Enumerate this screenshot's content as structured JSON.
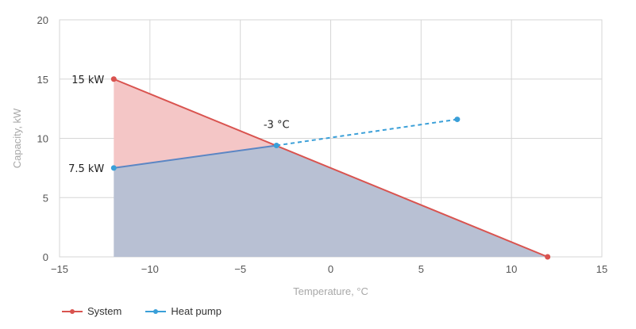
{
  "chart_data": {
    "type": "line",
    "title": "",
    "xlabel": "Temperature, °C",
    "ylabel": "Capacity, kW",
    "xlim": [
      -15,
      15
    ],
    "ylim": [
      0,
      20
    ],
    "x_ticks": [
      "−15",
      "−10",
      "−5",
      "0",
      "5",
      "10",
      "15"
    ],
    "y_ticks": [
      "0",
      "5",
      "10",
      "15",
      "20"
    ],
    "grid": true,
    "legend_position": "bottom-left",
    "series": [
      {
        "name": "System",
        "color": "#d9534f",
        "line_style": "solid",
        "x": [
          -12,
          12
        ],
        "y": [
          15,
          0
        ]
      },
      {
        "name": "Heat pump",
        "color": "#3a9fd8",
        "line_style": "solid then dashed",
        "x": [
          -12,
          -3,
          7
        ],
        "y": [
          7.5,
          9.4,
          11.6
        ]
      }
    ],
    "shaded_areas": [
      {
        "color": "#f4c6c6"
      },
      {
        "color": "#b8c0d3"
      }
    ],
    "annotations": [
      {
        "text": "15 kW",
        "x": -12,
        "y": 15
      },
      {
        "text": "7.5 kW",
        "x": -12,
        "y": 7.5
      },
      {
        "text": "-3 °C",
        "x": -3,
        "y": 9.4
      }
    ]
  }
}
